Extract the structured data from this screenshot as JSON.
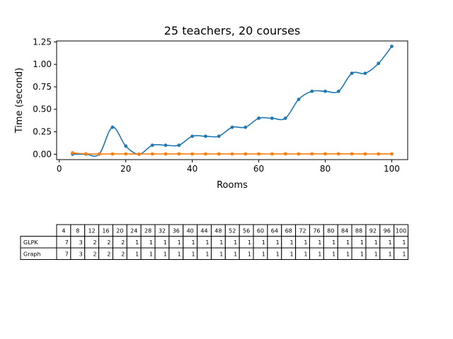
{
  "chart_data": {
    "type": "line",
    "title": "25 teachers, 20 courses",
    "xlabel": "Rooms",
    "ylabel": "Time (second)",
    "xlim": [
      -0.8,
      104.8
    ],
    "ylim": [
      -0.06,
      1.26
    ],
    "xticks": [
      0,
      20,
      40,
      60,
      80,
      100
    ],
    "yticks": [
      0.0,
      0.25,
      0.5,
      0.75,
      1.0,
      1.25
    ],
    "grid": false,
    "x": [
      4,
      8,
      12,
      16,
      20,
      24,
      28,
      32,
      36,
      40,
      44,
      48,
      52,
      56,
      60,
      64,
      68,
      72,
      76,
      80,
      84,
      88,
      92,
      96,
      100
    ],
    "series": [
      {
        "color": "#1f77b4",
        "values": [
          0.0,
          0.0,
          0.0,
          0.3,
          0.09,
          0.0,
          0.1,
          0.1,
          0.1,
          0.2,
          0.2,
          0.2,
          0.3,
          0.3,
          0.4,
          0.4,
          0.4,
          0.61,
          0.7,
          0.7,
          0.7,
          0.9,
          0.9,
          1.01,
          1.2
        ]
      },
      {
        "color": "#ff7f0e",
        "values": [
          0.015,
          0.004,
          0.002,
          0.003,
          0.003,
          0.002,
          0.003,
          0.003,
          0.004,
          0.003,
          0.003,
          0.003,
          0.003,
          0.003,
          0.003,
          0.003,
          0.004,
          0.003,
          0.004,
          0.004,
          0.004,
          0.004,
          0.003,
          0.003,
          0.003
        ]
      }
    ],
    "table": {
      "columns": [
        "4",
        "8",
        "12",
        "16",
        "20",
        "24",
        "28",
        "32",
        "36",
        "40",
        "44",
        "48",
        "52",
        "56",
        "60",
        "64",
        "68",
        "72",
        "76",
        "80",
        "84",
        "88",
        "92",
        "96",
        "100"
      ],
      "rows": [
        {
          "label": "GLPK",
          "values": [
            "7",
            "3",
            "2",
            "2",
            "2",
            "1",
            "1",
            "1",
            "1",
            "1",
            "1",
            "1",
            "1",
            "1",
            "1",
            "1",
            "1",
            "1",
            "1",
            "1",
            "1",
            "1",
            "1",
            "1",
            "1"
          ]
        },
        {
          "label": "Graph",
          "values": [
            "7",
            "3",
            "2",
            "2",
            "2",
            "1",
            "1",
            "1",
            "1",
            "1",
            "1",
            "1",
            "1",
            "1",
            "1",
            "1",
            "1",
            "1",
            "1",
            "1",
            "1",
            "1",
            "1",
            "1",
            "1"
          ]
        }
      ]
    }
  }
}
